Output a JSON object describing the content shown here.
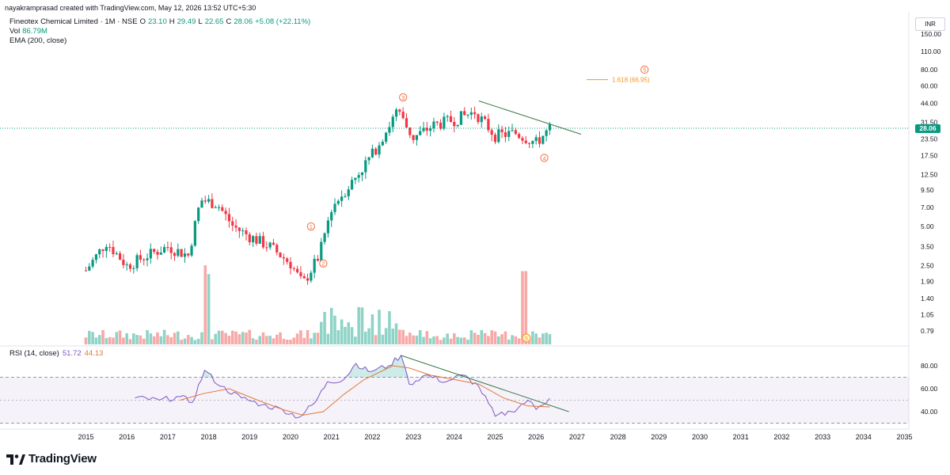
{
  "attribution": "nayakramprasad created with TradingView.com, May 12, 2026 13:52 UTC+5:30",
  "legend": {
    "symbol": "Fineotex Chemical Limited · 1M · NSE",
    "o_label": "O",
    "o_value": "23.10",
    "h_label": "H",
    "h_value": "29.49",
    "l_label": "L",
    "l_value": "22.65",
    "c_label": "C",
    "c_value": "28.06",
    "change": "+5.08 (+22.11%)",
    "vol_label": "Vol",
    "vol_value": "86.79M",
    "ema_label": "EMA (200, close)"
  },
  "rsi_legend": {
    "label": "RSI (14, close)",
    "rsi_value": "51.72",
    "ma_value": "44.13"
  },
  "currency": "INR",
  "last_price": "28.06",
  "brand": "TradingView",
  "colors": {
    "up": "#089981",
    "down": "#f23645",
    "vol_up": "#8fd3c7",
    "vol_down": "#f7a9a7",
    "rsi": "#7e57c2",
    "rsi_ma": "#e0793a",
    "fib": "#f7931a",
    "trend": "#3d7a4a"
  },
  "chart_data": [
    {
      "type": "candlestick",
      "scale": "log",
      "price_axis_ticks": [
        "150.00",
        "110.00",
        "80.00",
        "60.00",
        "44.00",
        "31.50",
        "23.50",
        "17.50",
        "12.50",
        "9.50",
        "7.00",
        "5.00",
        "3.50",
        "2.50",
        "1.90",
        "1.40",
        "1.05",
        "0.79"
      ],
      "time_axis_ticks": [
        "2015",
        "2016",
        "2017",
        "2018",
        "2019",
        "2020",
        "2021",
        "2022",
        "2023",
        "2024",
        "2025",
        "2026",
        "2027",
        "2028",
        "2029",
        "2030",
        "2031",
        "2032",
        "2033",
        "2034",
        "2035"
      ],
      "annual_price_path": [
        {
          "year": 2015.0,
          "price": 2.3
        },
        {
          "year": 2015.5,
          "price": 3.8
        },
        {
          "year": 2016.0,
          "price": 2.5
        },
        {
          "year": 2016.5,
          "price": 3.0
        },
        {
          "year": 2017.0,
          "price": 3.5
        },
        {
          "year": 2017.5,
          "price": 3.0
        },
        {
          "year": 2017.8,
          "price": 8.0
        },
        {
          "year": 2018.2,
          "price": 7.5
        },
        {
          "year": 2018.6,
          "price": 5.0
        },
        {
          "year": 2019.0,
          "price": 4.2
        },
        {
          "year": 2019.5,
          "price": 3.5
        },
        {
          "year": 2020.0,
          "price": 2.6
        },
        {
          "year": 2020.3,
          "price": 1.8
        },
        {
          "year": 2020.7,
          "price": 3.0
        },
        {
          "year": 2021.0,
          "price": 7.0
        },
        {
          "year": 2021.5,
          "price": 11.0
        },
        {
          "year": 2022.0,
          "price": 18.0
        },
        {
          "year": 2022.6,
          "price": 38.0
        },
        {
          "year": 2023.0,
          "price": 24.0
        },
        {
          "year": 2023.5,
          "price": 30.0
        },
        {
          "year": 2024.0,
          "price": 33.0
        },
        {
          "year": 2024.5,
          "price": 38.0
        },
        {
          "year": 2025.0,
          "price": 25.0
        },
        {
          "year": 2025.5,
          "price": 26.0
        },
        {
          "year": 2026.0,
          "price": 22.0
        },
        {
          "year": 2026.33,
          "price": 28.06
        }
      ],
      "wave_labels": [
        {
          "label": "1",
          "year": 2020.5,
          "price": 5.0
        },
        {
          "label": "2",
          "year": 2020.8,
          "price": 2.6
        },
        {
          "label": "3",
          "year": 2022.75,
          "price": 49.0
        },
        {
          "label": "4",
          "year": 2026.2,
          "price": 16.8
        },
        {
          "label": "5",
          "year": 2028.65,
          "price": 80.0
        }
      ],
      "fib_level": {
        "label": "1.618 (66.95)",
        "price": 66.95
      },
      "trendline": {
        "from": {
          "year": 2024.6,
          "price": 46.0
        },
        "to": {
          "year": 2027.1,
          "price": 25.5
        }
      },
      "volume_note": "volume histogram at bottom of price pane; spikes near 2017.9 and 2025.7"
    },
    {
      "type": "line",
      "title": "RSI (14, close)",
      "y_ticks": [
        "80.00",
        "60.00",
        "40.00"
      ],
      "band": [
        30,
        70
      ],
      "series": [
        {
          "name": "RSI",
          "values": [
            {
              "year": 2016.2,
              "value": 52
            },
            {
              "year": 2016.8,
              "value": 50
            },
            {
              "year": 2017.3,
              "value": 53
            },
            {
              "year": 2017.6,
              "value": 48
            },
            {
              "year": 2017.9,
              "value": 76
            },
            {
              "year": 2018.3,
              "value": 62
            },
            {
              "year": 2018.8,
              "value": 52
            },
            {
              "year": 2019.3,
              "value": 46
            },
            {
              "year": 2019.8,
              "value": 42
            },
            {
              "year": 2020.2,
              "value": 35
            },
            {
              "year": 2020.6,
              "value": 48
            },
            {
              "year": 2020.9,
              "value": 66
            },
            {
              "year": 2021.3,
              "value": 68
            },
            {
              "year": 2021.6,
              "value": 82
            },
            {
              "year": 2021.9,
              "value": 75
            },
            {
              "year": 2022.4,
              "value": 80
            },
            {
              "year": 2022.7,
              "value": 89
            },
            {
              "year": 2022.9,
              "value": 64
            },
            {
              "year": 2023.3,
              "value": 72
            },
            {
              "year": 2023.8,
              "value": 66
            },
            {
              "year": 2024.2,
              "value": 72
            },
            {
              "year": 2024.6,
              "value": 62
            },
            {
              "year": 2025.0,
              "value": 36
            },
            {
              "year": 2025.4,
              "value": 40
            },
            {
              "year": 2025.8,
              "value": 50
            },
            {
              "year": 2026.0,
              "value": 42
            },
            {
              "year": 2026.33,
              "value": 51.72
            }
          ]
        },
        {
          "name": "RSI-based MA",
          "values": [
            {
              "year": 2017.3,
              "value": 50
            },
            {
              "year": 2017.9,
              "value": 56
            },
            {
              "year": 2018.5,
              "value": 60
            },
            {
              "year": 2019.2,
              "value": 50
            },
            {
              "year": 2019.8,
              "value": 42
            },
            {
              "year": 2020.3,
              "value": 37
            },
            {
              "year": 2020.8,
              "value": 40
            },
            {
              "year": 2021.3,
              "value": 55
            },
            {
              "year": 2021.8,
              "value": 68
            },
            {
              "year": 2022.5,
              "value": 80
            },
            {
              "year": 2022.9,
              "value": 78
            },
            {
              "year": 2023.4,
              "value": 72
            },
            {
              "year": 2024.0,
              "value": 68
            },
            {
              "year": 2024.6,
              "value": 64
            },
            {
              "year": 2025.2,
              "value": 52
            },
            {
              "year": 2025.8,
              "value": 45
            },
            {
              "year": 2026.33,
              "value": 44.13
            }
          ]
        }
      ],
      "trendline": {
        "from": {
          "year": 2022.7,
          "value": 89
        },
        "to": {
          "year": 2026.8,
          "value": 40
        }
      }
    }
  ]
}
